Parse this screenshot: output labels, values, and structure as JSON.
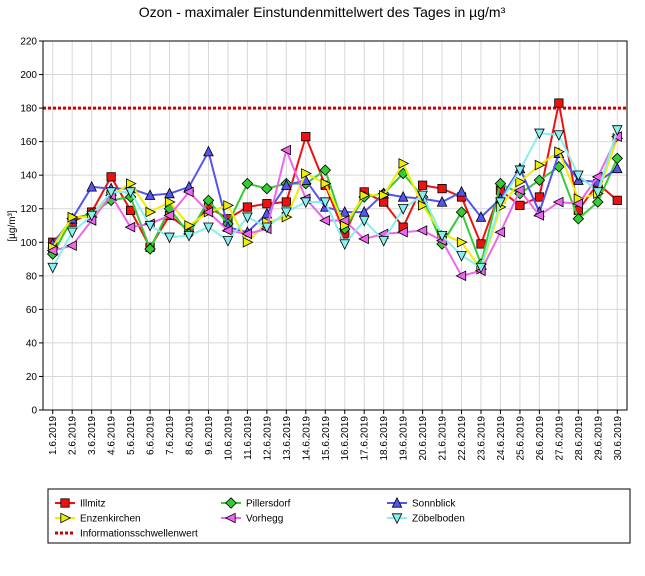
{
  "chart_data": {
    "type": "line",
    "title": "Ozon -  maximaler Einstundenmittelwert des Tages in µg/m³",
    "ylabel": "[µg/m³]",
    "xlabel": "",
    "ylim": [
      0,
      220
    ],
    "yticks": [
      0,
      20,
      40,
      60,
      80,
      100,
      120,
      140,
      160,
      180,
      200,
      220
    ],
    "grid": true,
    "legend_position": "bottom",
    "categories": [
      "1.6.2019",
      "2.6.2019",
      "3.6.2019",
      "4.6.2019",
      "5.6.2019",
      "6.6.2019",
      "7.6.2019",
      "8.6.2019",
      "9.6.2019",
      "10.6.2019",
      "11.6.2019",
      "12.6.2019",
      "13.6.2019",
      "14.6.2019",
      "15.6.2019",
      "16.6.2019",
      "17.6.2019",
      "18.6.2019",
      "19.6.2019",
      "20.6.2019",
      "21.6.2019",
      "22.6.2019",
      "23.6.2019",
      "24.6.2019",
      "25.6.2019",
      "26.6.2019",
      "27.6.2019",
      "28.6.2019",
      "29.6.2019",
      "30.6.2019"
    ],
    "threshold": {
      "name": "Informationsschwellenwert",
      "value": 180,
      "color": "#cc0000"
    },
    "series": [
      {
        "name": "Illmitz",
        "color": "#ee1111",
        "marker": "square",
        "values": [
          100,
          112,
          118,
          139,
          119,
          97,
          116,
          107,
          121,
          114,
          121,
          123,
          124,
          163,
          134,
          105,
          130,
          124,
          109,
          134,
          132,
          127,
          99,
          131,
          122,
          127,
          183,
          119,
          135,
          125
        ]
      },
      {
        "name": "Pillersdorf",
        "color": "#33cc33",
        "marker": "diamond",
        "values": [
          93,
          114,
          117,
          125,
          127,
          96,
          120,
          105,
          125,
          111,
          135,
          132,
          135,
          135,
          143,
          108,
          127,
          129,
          141,
          127,
          99,
          118,
          87,
          135,
          129,
          137,
          145,
          114,
          124,
          150
        ]
      },
      {
        "name": "Sonnblick",
        "color": "#5555ee",
        "marker": "triangle-up",
        "values": [
          99,
          114,
          133,
          132,
          132,
          128,
          129,
          133,
          154,
          109,
          106,
          117,
          134,
          137,
          121,
          118,
          118,
          129,
          127,
          126,
          124,
          130,
          115,
          126,
          144,
          118,
          153,
          137,
          136,
          144
        ]
      },
      {
        "name": "Enzenkirchen",
        "color": "#eeee00",
        "marker": "triangle-right",
        "values": [
          97,
          115,
          115,
          128,
          135,
          118,
          124,
          110,
          118,
          122,
          100,
          112,
          115,
          141,
          135,
          110,
          128,
          128,
          147,
          122,
          105,
          100,
          84,
          121,
          136,
          146,
          154,
          126,
          129,
          162
        ]
      },
      {
        "name": "Vorhegg",
        "color": "#ee66ee",
        "marker": "triangle-left",
        "values": [
          95,
          98,
          113,
          128,
          109,
          111,
          116,
          130,
          118,
          107,
          105,
          108,
          155,
          126,
          113,
          113,
          102,
          105,
          106,
          107,
          101,
          80,
          83,
          106,
          131,
          116,
          124,
          123,
          139,
          163
        ]
      },
      {
        "name": "Zöbelboden",
        "color": "#88eeee",
        "marker": "triangle-down",
        "values": [
          85,
          106,
          116,
          130,
          130,
          110,
          103,
          104,
          109,
          101,
          115,
          109,
          118,
          124,
          124,
          99,
          113,
          101,
          120,
          128,
          104,
          92,
          85,
          124,
          143,
          165,
          164,
          140,
          130,
          167
        ]
      }
    ]
  }
}
